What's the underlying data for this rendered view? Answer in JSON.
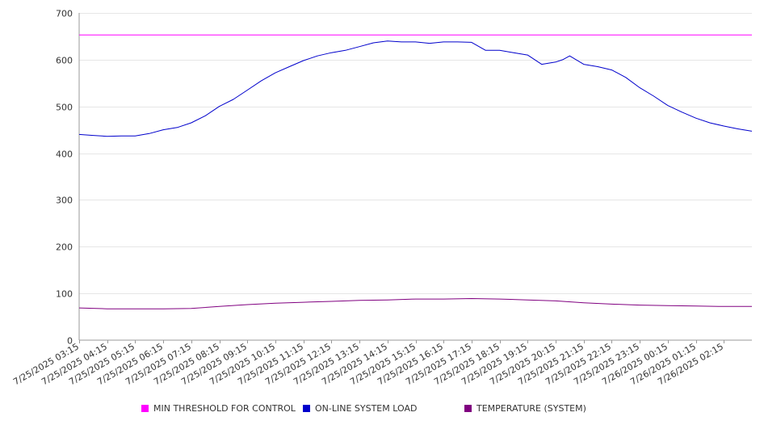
{
  "chart_data": {
    "type": "line",
    "title": "",
    "xlabel": "",
    "ylabel": "",
    "ylim": [
      0,
      700
    ],
    "y_ticks": [
      0,
      100,
      200,
      300,
      400,
      500,
      600,
      700
    ],
    "grid": true,
    "legend_position": "bottom",
    "x_tick_labels": [
      "7/25/2025 03:15",
      "7/25/2025 04:15",
      "7/25/2025 05:15",
      "7/25/2025 06:15",
      "7/25/2025 07:15",
      "7/25/2025 08:15",
      "7/25/2025 09:15",
      "7/25/2025 10:15",
      "7/25/2025 11:15",
      "7/25/2025 12:15",
      "7/25/2025 13:15",
      "7/25/2025 14:15",
      "7/25/2025 15:15",
      "7/25/2025 16:15",
      "7/25/2025 17:15",
      "7/25/2025 18:15",
      "7/25/2025 19:15",
      "7/25/2025 20:15",
      "7/25/2025 21:15",
      "7/25/2025 22:15",
      "7/25/2025 23:15",
      "7/26/2025 00:15",
      "7/26/2025 01:15",
      "7/26/2025 02:15"
    ],
    "series": [
      {
        "name": "MIN THRESHOLD FOR CONTROL",
        "color": "#ff00ff",
        "x": [
          "7/25/2025 03:15",
          "7/26/2025 03:15"
        ],
        "values": [
          653,
          653
        ]
      },
      {
        "name": "ON-LINE SYSTEM LOAD",
        "color": "#0000cc",
        "x": [
          "7/25/2025 03:15",
          "7/25/2025 03:45",
          "7/25/2025 04:15",
          "7/25/2025 04:45",
          "7/25/2025 05:15",
          "7/25/2025 05:45",
          "7/25/2025 06:15",
          "7/25/2025 06:45",
          "7/25/2025 07:15",
          "7/25/2025 07:45",
          "7/25/2025 08:15",
          "7/25/2025 08:45",
          "7/25/2025 09:15",
          "7/25/2025 09:45",
          "7/25/2025 10:15",
          "7/25/2025 10:45",
          "7/25/2025 11:15",
          "7/25/2025 11:45",
          "7/25/2025 12:15",
          "7/25/2025 12:45",
          "7/25/2025 13:15",
          "7/25/2025 13:45",
          "7/25/2025 14:15",
          "7/25/2025 14:45",
          "7/25/2025 15:15",
          "7/25/2025 15:45",
          "7/25/2025 16:15",
          "7/25/2025 16:45",
          "7/25/2025 17:15",
          "7/25/2025 17:45",
          "7/25/2025 18:15",
          "7/25/2025 18:45",
          "7/25/2025 19:15",
          "7/25/2025 19:45",
          "7/25/2025 20:15",
          "7/25/2025 20:30",
          "7/25/2025 20:45",
          "7/25/2025 21:15",
          "7/25/2025 21:45",
          "7/25/2025 22:15",
          "7/25/2025 22:45",
          "7/25/2025 23:15",
          "7/25/2025 23:45",
          "7/26/2025 00:15",
          "7/26/2025 00:45",
          "7/26/2025 01:15",
          "7/26/2025 01:45",
          "7/26/2025 02:15",
          "7/26/2025 02:45",
          "7/26/2025 03:15"
        ],
        "values": [
          440,
          438,
          436,
          437,
          437,
          442,
          450,
          455,
          465,
          480,
          500,
          515,
          535,
          555,
          572,
          585,
          598,
          608,
          615,
          620,
          628,
          636,
          640,
          638,
          638,
          635,
          638,
          638,
          637,
          620,
          620,
          615,
          610,
          590,
          595,
          600,
          608,
          590,
          585,
          578,
          562,
          540,
          522,
          502,
          488,
          475,
          465,
          458,
          452,
          447
        ]
      },
      {
        "name": "TEMPERATURE (SYSTEM)",
        "color": "#800080",
        "x": [
          "7/25/2025 03:15",
          "7/25/2025 04:15",
          "7/25/2025 05:15",
          "7/25/2025 06:15",
          "7/25/2025 07:15",
          "7/25/2025 08:15",
          "7/25/2025 09:15",
          "7/25/2025 10:15",
          "7/25/2025 11:15",
          "7/25/2025 12:15",
          "7/25/2025 13:15",
          "7/25/2025 14:15",
          "7/25/2025 15:15",
          "7/25/2025 16:15",
          "7/25/2025 17:15",
          "7/25/2025 18:15",
          "7/25/2025 19:15",
          "7/25/2025 20:15",
          "7/25/2025 21:15",
          "7/25/2025 22:15",
          "7/25/2025 23:15",
          "7/26/2025 00:15",
          "7/26/2025 01:15",
          "7/26/2025 02:15",
          "7/26/2025 03:15"
        ],
        "values": [
          69,
          67,
          67,
          67,
          68,
          72,
          76,
          79,
          81,
          83,
          85,
          86,
          88,
          88,
          89,
          88,
          86,
          84,
          80,
          77,
          75,
          74,
          73,
          72,
          72
        ]
      }
    ]
  }
}
